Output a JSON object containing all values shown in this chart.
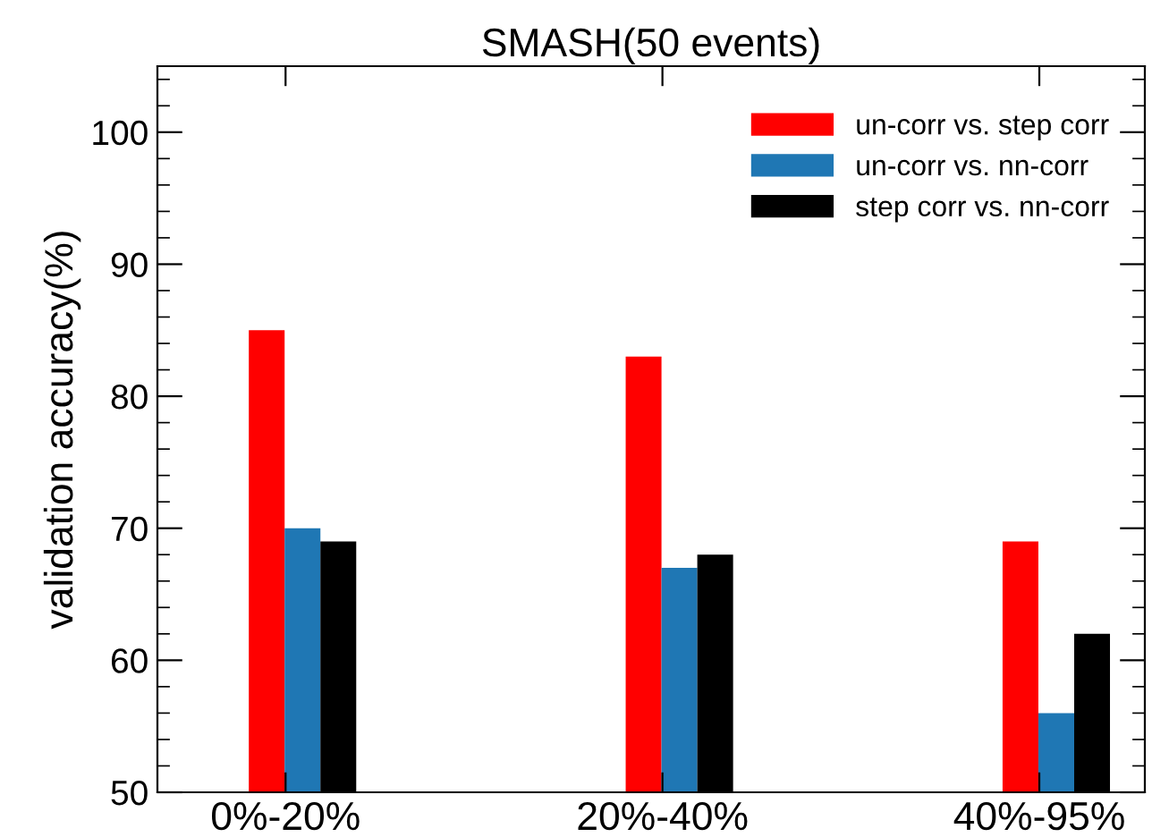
{
  "chart_data": {
    "type": "bar",
    "title": "SMASH(50 events)",
    "ylabel": "validation accuracy(%)",
    "categories": [
      "0%-20%",
      "20%-40%",
      "40%-95%"
    ],
    "series": [
      {
        "name": "un-corr vs. step corr",
        "color": "#ff0000",
        "values": [
          85,
          83,
          69
        ]
      },
      {
        "name": "un-corr vs. nn-corr",
        "color": "#1f77b4",
        "values": [
          70,
          67,
          56
        ]
      },
      {
        "name": "step corr vs. nn-corr",
        "color": "#000000",
        "values": [
          69,
          68,
          62
        ]
      }
    ],
    "ylim": [
      50,
      105
    ],
    "yticks": [
      50,
      60,
      70,
      80,
      90,
      100
    ],
    "grid": false,
    "legend": "top right"
  }
}
